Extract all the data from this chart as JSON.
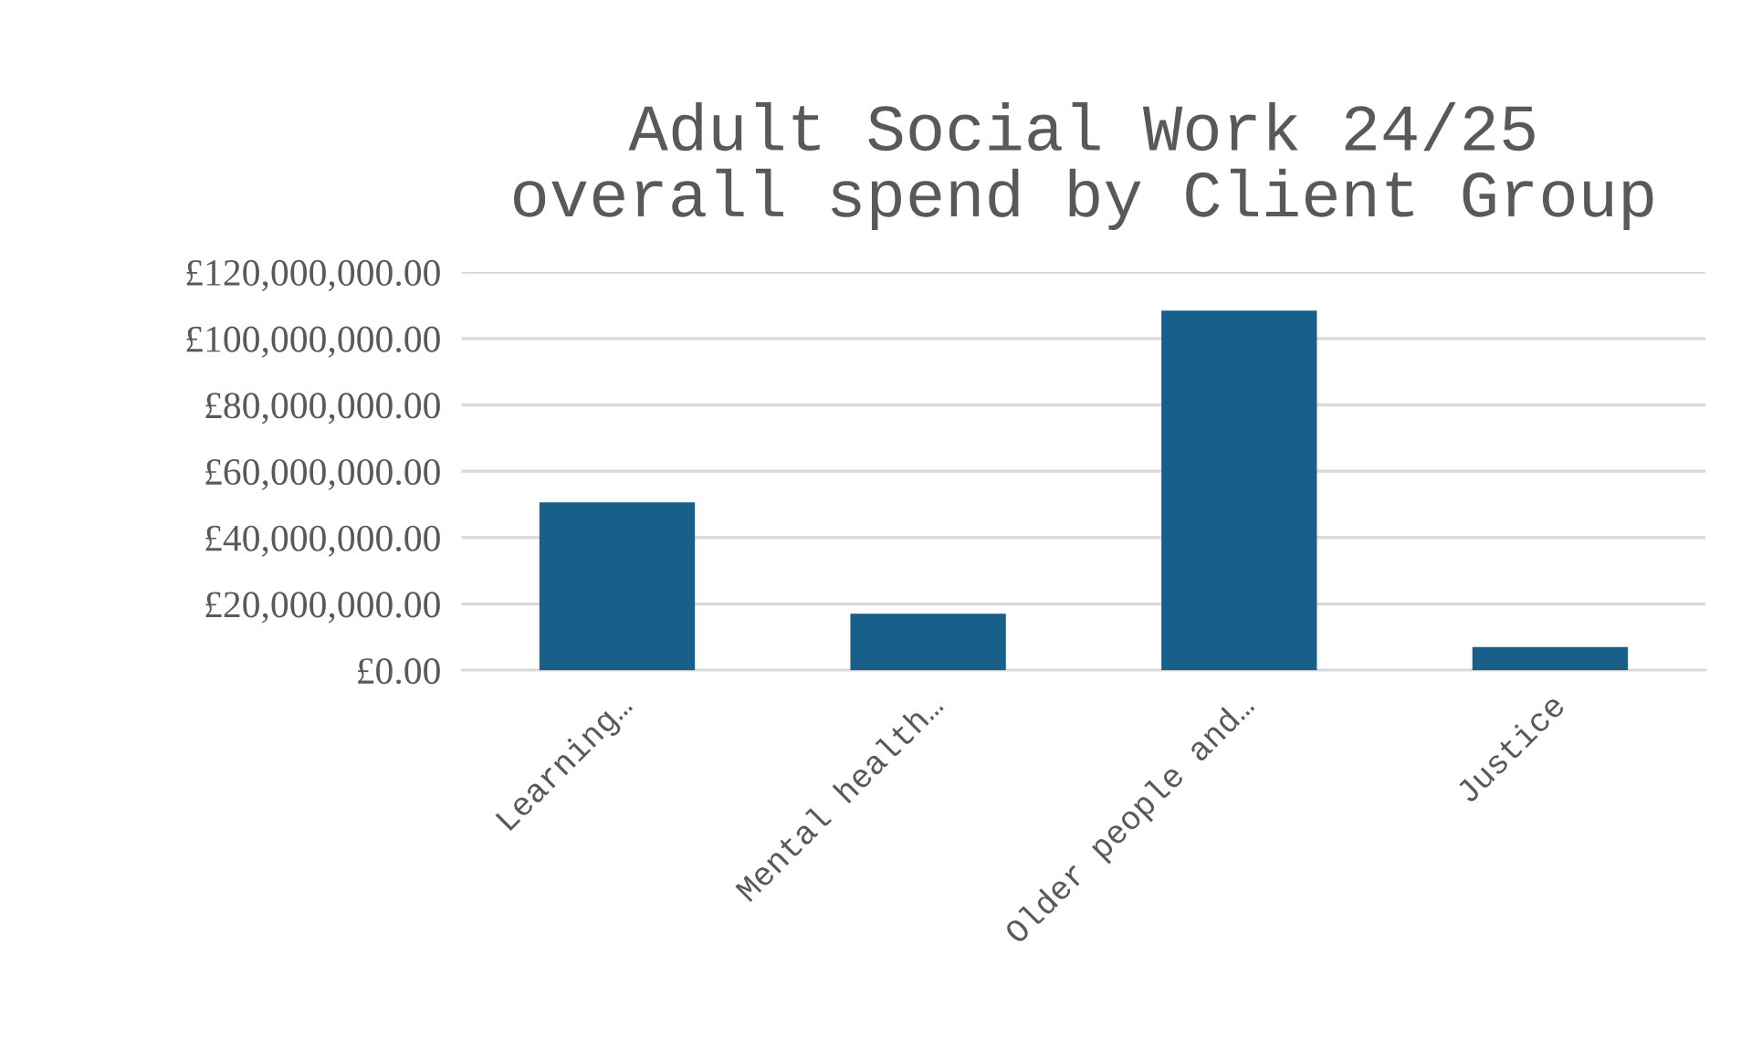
{
  "chart_data": {
    "type": "bar",
    "title": "Adult Social Work 24/25\noverall spend by Client Group",
    "categories": [
      "Learning…",
      "Mental health…",
      "Older people and…",
      "Justice"
    ],
    "values": [
      50600000,
      17100000,
      108400000,
      7000000
    ],
    "color": "#18608a",
    "ylim": [
      0,
      120000000
    ],
    "yticks": [
      {
        "value": 0,
        "label": "£0.00"
      },
      {
        "value": 20000000,
        "label": "£20,000,000.00"
      },
      {
        "value": 40000000,
        "label": "£40,000,000.00"
      },
      {
        "value": 60000000,
        "label": "£60,000,000.00"
      },
      {
        "value": 80000000,
        "label": "£80,000,000.00"
      },
      {
        "value": 100000000,
        "label": "£100,000,000.00"
      },
      {
        "value": 120000000,
        "label": "£120,000,000.00"
      }
    ],
    "grid": "y"
  }
}
